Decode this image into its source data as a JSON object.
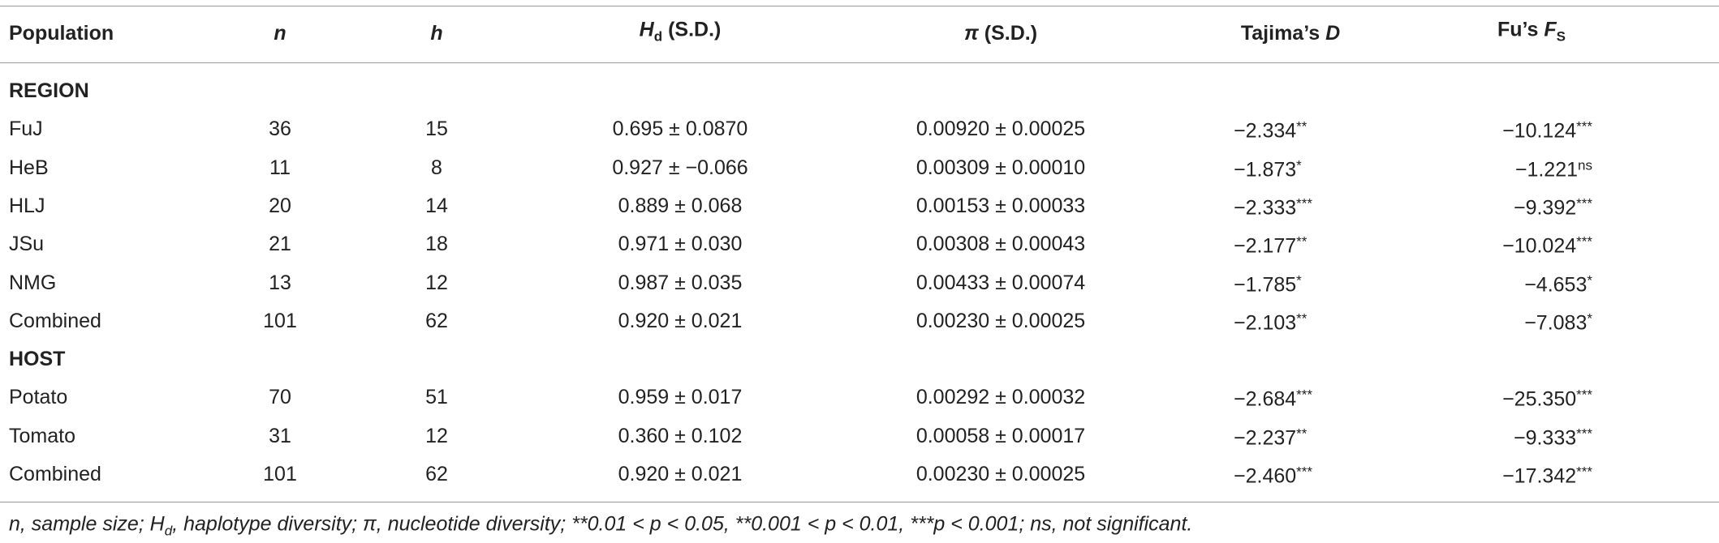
{
  "header": [
    [
      "Population"
    ],
    [
      "n"
    ],
    [
      "h"
    ],
    [
      "H",
      "d",
      " (S.D.)"
    ],
    [
      "π",
      " (S.D.)"
    ],
    [
      "Tajima’s ",
      "D"
    ],
    [
      "Fu’s ",
      "F",
      "S"
    ]
  ],
  "sections": [
    {
      "label": "REGION",
      "rows": [
        [
          "FuJ",
          36,
          15,
          "0.695 ± 0.0870",
          "0.00920 ± 0.00025",
          [
            "−2.334",
            "**"
          ],
          [
            "−10.124",
            "***"
          ]
        ],
        [
          "HeB",
          11,
          8,
          "0.927 ± −0.066",
          "0.00309 ± 0.00010",
          [
            "−1.873",
            "*"
          ],
          [
            "−1.221",
            "ns"
          ]
        ],
        [
          "HLJ",
          20,
          14,
          "0.889 ± 0.068",
          "0.00153 ± 0.00033",
          [
            "−2.333",
            "***"
          ],
          [
            "−9.392",
            "***"
          ]
        ],
        [
          "JSu",
          21,
          18,
          "0.971 ± 0.030",
          "0.00308 ± 0.00043",
          [
            "−2.177",
            "**"
          ],
          [
            "−10.024",
            "***"
          ]
        ],
        [
          "NMG",
          13,
          12,
          "0.987 ± 0.035",
          "0.00433 ± 0.00074",
          [
            "−1.785",
            "*"
          ],
          [
            "−4.653",
            "*"
          ]
        ],
        [
          "Combined",
          101,
          62,
          "0.920 ± 0.021",
          "0.00230 ± 0.00025",
          [
            "−2.103",
            "**"
          ],
          [
            "−7.083",
            "*"
          ]
        ]
      ]
    },
    {
      "label": "HOST",
      "rows": [
        [
          "Potato",
          70,
          51,
          "0.959 ± 0.017",
          "0.00292 ± 0.00032",
          [
            "−2.684",
            "***"
          ],
          [
            "−25.350",
            "***"
          ]
        ],
        [
          "Tomato",
          31,
          12,
          "0.360 ± 0.102",
          "0.00058 ± 0.00017",
          [
            "−2.237",
            "**"
          ],
          [
            "−9.333",
            "***"
          ]
        ],
        [
          "Combined",
          101,
          62,
          "0.920 ± 0.021",
          "0.00230 ± 0.00025",
          [
            "−2.460",
            "***"
          ],
          [
            "−17.342",
            "***"
          ]
        ]
      ]
    }
  ],
  "footnote": [
    "n, sample size; H",
    "d",
    ", haplotype diversity; π, nucleotide diversity; **0.01 < p < 0.05, **0.001 < p < 0.01, ***p < 0.001; ns, not significant."
  ]
}
